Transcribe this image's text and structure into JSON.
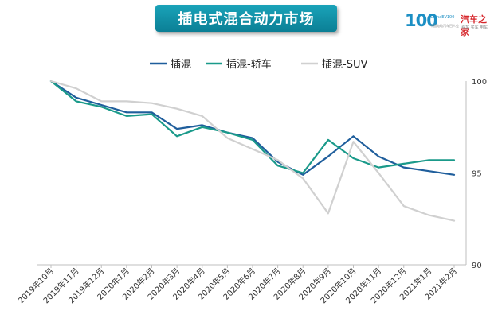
{
  "header": {
    "title": "插电式混合动力市场"
  },
  "logo": {
    "mark": "100",
    "small": "ChinaEV100",
    "sub": "中国电动汽车百人会",
    "cn": "汽车之家",
    "cn_sub": "看车 买车 用车"
  },
  "chart_data": {
    "type": "line",
    "categories": [
      "2019年10月",
      "2019年11月",
      "2019年12月",
      "2020年1月",
      "2020年2月",
      "2020年3月",
      "2020年4月",
      "2020年5月",
      "2020年6月",
      "2020年7月",
      "2020年8月",
      "2020年9月",
      "2020年10月",
      "2020年11月",
      "2020年12月",
      "2021年1月",
      "2021年2月"
    ],
    "series": [
      {
        "name": "插混",
        "color": "#1f5e9c",
        "values": [
          100,
          99.1,
          98.7,
          98.3,
          98.3,
          97.4,
          97.6,
          97.2,
          96.9,
          95.6,
          94.9,
          95.9,
          97.0,
          95.9,
          95.3,
          95.1,
          94.9
        ]
      },
      {
        "name": "插混-轿车",
        "color": "#1a9a8a",
        "values": [
          100,
          98.9,
          98.6,
          98.1,
          98.2,
          97.0,
          97.5,
          97.2,
          96.8,
          95.4,
          95.0,
          96.8,
          95.8,
          95.3,
          95.5,
          95.7,
          95.7
        ]
      },
      {
        "name": "插混-SUV",
        "color": "#d0d0d0",
        "values": [
          100,
          99.6,
          98.9,
          98.9,
          98.8,
          98.5,
          98.1,
          96.9,
          96.3,
          95.7,
          94.7,
          92.8,
          96.7,
          95.0,
          93.2,
          92.7,
          92.4
        ]
      }
    ],
    "ylim": [
      90,
      100
    ],
    "yticks": [
      90,
      95,
      100
    ],
    "legend_position": "top",
    "grid": false
  }
}
